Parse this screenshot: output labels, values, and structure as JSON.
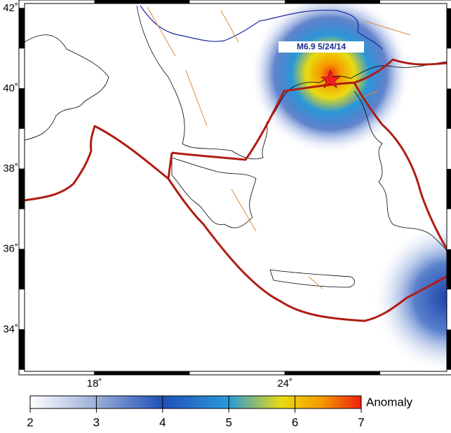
{
  "map": {
    "lon_range": [
      15.8,
      29.1
    ],
    "lat_range": [
      32.96,
      42.12
    ],
    "lat_ticks": [
      {
        "value": 42,
        "label": "42˚"
      },
      {
        "value": 40,
        "label": "40˚"
      },
      {
        "value": 38,
        "label": "38˚"
      },
      {
        "value": 36,
        "label": "36˚"
      },
      {
        "value": 34,
        "label": "34˚"
      }
    ],
    "lon_ticks": [
      {
        "value": 18,
        "label": "18˚"
      },
      {
        "value": 24,
        "label": "24˚"
      }
    ],
    "annotation": "M6.9 5/24/14",
    "colorbar": {
      "label": "Anomaly",
      "range": [
        2,
        7
      ],
      "ticks": [
        2,
        3,
        4,
        5,
        6,
        7
      ]
    }
  }
}
